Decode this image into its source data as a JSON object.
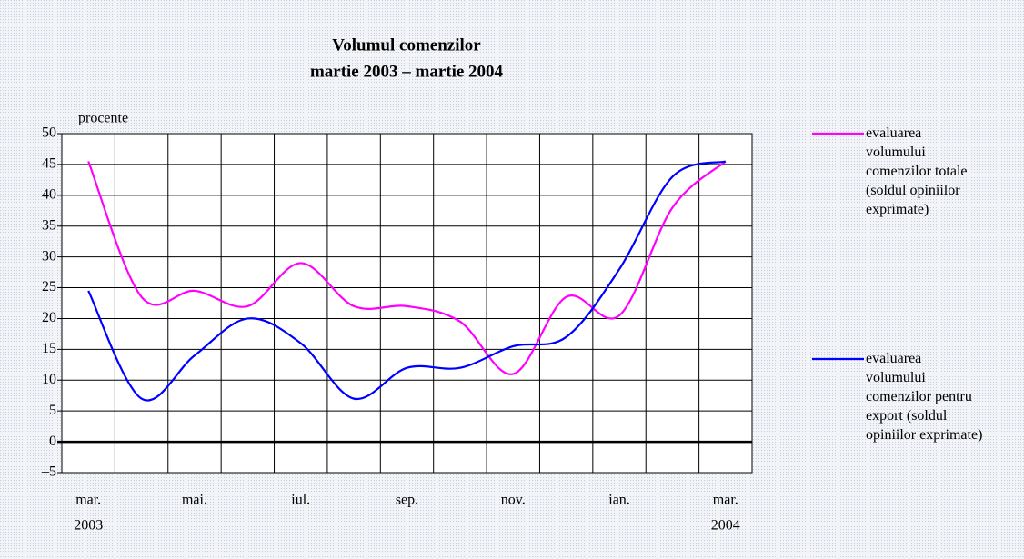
{
  "chart_data": {
    "type": "line",
    "title": "Volumul comenzilor",
    "subtitle": "martie 2003 – martie 2004",
    "y_label": "procente",
    "categories": [
      "mar.",
      null,
      "mai.",
      null,
      "iul.",
      null,
      "sep.",
      null,
      "nov.",
      null,
      "ian.",
      null,
      "mar."
    ],
    "year_labels": [
      "2003",
      null,
      null,
      null,
      null,
      null,
      null,
      null,
      null,
      null,
      null,
      null,
      "2004"
    ],
    "series": [
      {
        "name": "evaluarea volumului comenzilor totale (soldul opiniilor exprimate)",
        "color": "#ff00ff",
        "values": [
          45.5,
          23.5,
          24.5,
          22,
          29,
          22,
          22,
          19.5,
          11,
          23.5,
          20.5,
          38,
          45.5
        ]
      },
      {
        "name": "evaluarea volumului comenzilor pentru export (soldul opiniilor exprimate)",
        "color": "#0000ff",
        "values": [
          24.5,
          7,
          14,
          20,
          16,
          7,
          12,
          12,
          15.5,
          17,
          28,
          43,
          45.5
        ]
      }
    ],
    "ylim": [
      -5,
      50
    ],
    "yticks": [
      {
        "value": -5,
        "label": "–5"
      },
      0,
      5,
      10,
      15,
      20,
      25,
      30,
      35,
      40,
      45,
      50
    ],
    "grid": true
  }
}
